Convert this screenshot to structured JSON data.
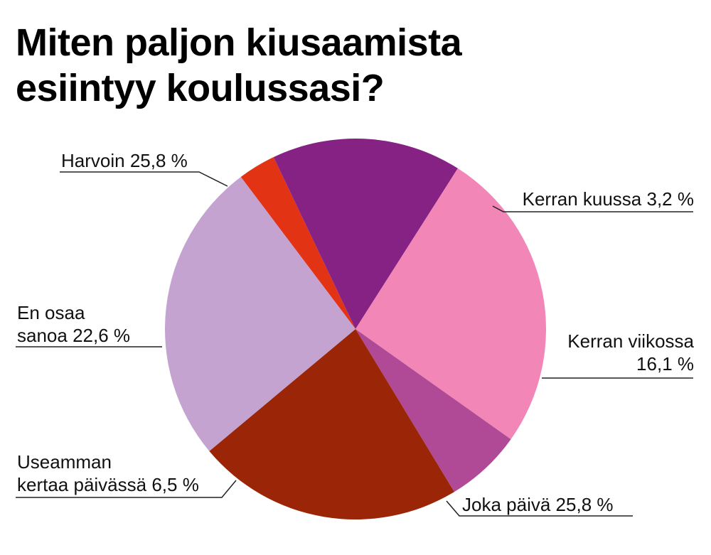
{
  "title_lines": [
    "Miten paljon kiusaamista",
    "esiintyy koulussasi?"
  ],
  "chart_data": {
    "type": "pie",
    "title": "Miten paljon kiusaamista esiintyy koulussasi?",
    "unit": "%",
    "slices": [
      {
        "label": "Kerran kuussa",
        "value": 3.2,
        "value_text": "3,2 %",
        "color": "#e33315"
      },
      {
        "label": "Kerran viikossa",
        "value": 16.1,
        "value_text": "16,1 %",
        "color": "#862284"
      },
      {
        "label": "Joka päivä",
        "value": 25.8,
        "value_text": "25,8 %",
        "color": "#f287b7"
      },
      {
        "label": "Useamman kertaa päivässä",
        "value": 6.5,
        "value_text": "6,5 %",
        "color": "#b04a96"
      },
      {
        "label": "En osaa sanoa",
        "value": 22.6,
        "value_text": "22,6 %",
        "color": "#9b2607"
      },
      {
        "label": "Harvoin",
        "value": 25.8,
        "value_text": "25,8 %",
        "color": "#c5a3d0"
      }
    ]
  },
  "labels": {
    "kerran_kuussa": {
      "name": "Kerran kuussa",
      "value": "3,2 %"
    },
    "kerran_viikossa": {
      "name": "Kerran viikossa",
      "value": "16,1 %"
    },
    "joka_paiva": {
      "name": "Joka päivä",
      "value": "25,8 %"
    },
    "useamman": {
      "name1": "Useamman",
      "name2": "kertaa päivässä",
      "value": "6,5 %"
    },
    "en_osaa": {
      "name1": "En osaa",
      "name2": "sanoa",
      "value": "22,6 %"
    },
    "harvoin": {
      "name": "Harvoin",
      "value": "25,8 %"
    }
  }
}
